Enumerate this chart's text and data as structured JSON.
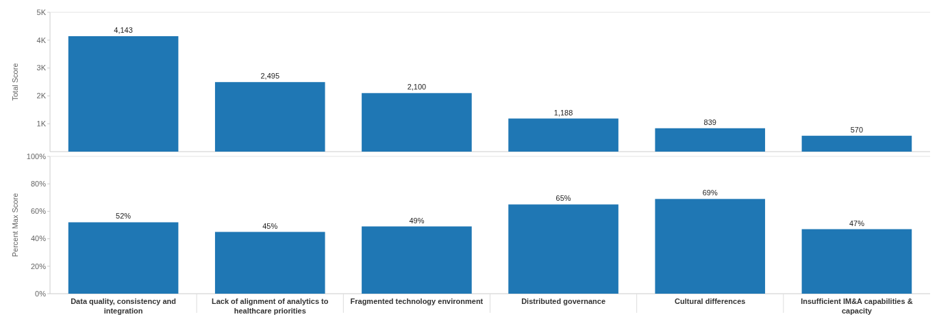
{
  "chart_data": [
    {
      "type": "bar",
      "ylabel": "Total Score",
      "categories": [
        "Data quality, consistency and integration",
        "Lack of alignment of analytics to healthcare priorities",
        "Fragmented technology environment",
        "Distributed governance",
        "Cultural differences",
        "Insufficient IM&A capabilities & capacity"
      ],
      "series": [
        {
          "color": "#1f77b4",
          "values": [
            4143,
            2495,
            2100,
            1188,
            839,
            570
          ],
          "value_labels": [
            "4,143",
            "2,495",
            "2,100",
            "1,188",
            "839",
            "570"
          ]
        }
      ],
      "ylim": [
        0,
        5000
      ],
      "yticks": [
        {
          "value": 1000,
          "label": "1K"
        },
        {
          "value": 2000,
          "label": "2K"
        },
        {
          "value": 3000,
          "label": "3K"
        },
        {
          "value": 4000,
          "label": "4K"
        },
        {
          "value": 5000,
          "label": "5K"
        }
      ],
      "tick_labels": "y"
    },
    {
      "type": "bar",
      "ylabel": "Percent Max Score",
      "categories": [
        "Data quality, consistency and integration",
        "Lack of alignment of analytics to healthcare priorities",
        "Fragmented technology environment",
        "Distributed governance",
        "Cultural differences",
        "Insufficient IM&A capabilities & capacity"
      ],
      "series": [
        {
          "color": "#1f77b4",
          "values": [
            52,
            45,
            49,
            65,
            69,
            47
          ],
          "value_labels": [
            "52%",
            "45%",
            "49%",
            "65%",
            "69%",
            "47%"
          ]
        }
      ],
      "ylim": [
        0,
        100
      ],
      "yticks": [
        {
          "value": 0,
          "label": "0%"
        },
        {
          "value": 20,
          "label": "20%"
        },
        {
          "value": 40,
          "label": "40%"
        },
        {
          "value": 60,
          "label": "60%"
        },
        {
          "value": 80,
          "label": "80%"
        },
        {
          "value": 100,
          "label": "100%"
        }
      ]
    }
  ]
}
